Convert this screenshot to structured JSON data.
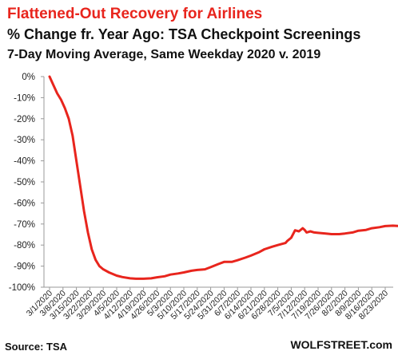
{
  "chart_data": {
    "type": "line",
    "title": "Flattened-Out  Recovery for Airlines",
    "subtitle": "% Change fr. Year Ago: TSA Checkpoint Screenings",
    "subtitle2": "7-Day Moving Average, Same Weekday 2020 v. 2019",
    "xlabel": "",
    "ylabel": "",
    "ylim": [
      -100,
      0
    ],
    "yticks": [
      0,
      -10,
      -20,
      -30,
      -40,
      -50,
      -60,
      -70,
      -80,
      -90,
      -100
    ],
    "ytick_labels": [
      "0%",
      "-10%",
      "-20%",
      "-30%",
      "-40%",
      "-50%",
      "-60%",
      "-70%",
      "-80%",
      "-90%",
      "-100%"
    ],
    "xticks": [
      "3/1/2020",
      "3/8/2020",
      "3/15/2020",
      "3/22/2020",
      "3/29/2020",
      "4/5/2020",
      "4/12/2020",
      "4/19/2020",
      "4/26/2020",
      "5/3/2020",
      "5/10/2020",
      "5/17/2020",
      "5/24/2020",
      "5/31/2020",
      "6/7/2020",
      "6/14/2020",
      "6/21/2020",
      "6/28/2020",
      "7/5/2020",
      "7/12/2020",
      "7/19/2020",
      "7/26/2020",
      "8/2/2020",
      "8/9/2020",
      "8/16/2020",
      "8/23/2020"
    ],
    "grid": false,
    "series": [
      {
        "color": "#e8251d",
        "x": [
          "2020-03-01",
          "2020-03-03",
          "2020-03-05",
          "2020-03-07",
          "2020-03-09",
          "2020-03-11",
          "2020-03-13",
          "2020-03-15",
          "2020-03-17",
          "2020-03-19",
          "2020-03-21",
          "2020-03-23",
          "2020-03-25",
          "2020-03-27",
          "2020-03-29",
          "2020-04-01",
          "2020-04-05",
          "2020-04-08",
          "2020-04-12",
          "2020-04-15",
          "2020-04-19",
          "2020-04-23",
          "2020-04-26",
          "2020-04-30",
          "2020-05-03",
          "2020-05-07",
          "2020-05-10",
          "2020-05-14",
          "2020-05-17",
          "2020-05-21",
          "2020-05-24",
          "2020-05-28",
          "2020-05-31",
          "2020-06-04",
          "2020-06-07",
          "2020-06-11",
          "2020-06-14",
          "2020-06-18",
          "2020-06-21",
          "2020-06-25",
          "2020-06-28",
          "2020-07-02",
          "2020-07-03",
          "2020-07-05",
          "2020-07-07",
          "2020-07-09",
          "2020-07-11",
          "2020-07-12",
          "2020-07-13",
          "2020-07-15",
          "2020-07-17",
          "2020-07-19",
          "2020-07-23",
          "2020-07-26",
          "2020-07-30",
          "2020-08-02",
          "2020-08-06",
          "2020-08-09",
          "2020-08-13",
          "2020-08-16",
          "2020-08-20",
          "2020-08-23",
          "2020-08-27",
          "2020-08-31"
        ],
        "values": [
          0,
          -4,
          -8,
          -11,
          -15,
          -20,
          -28,
          -40,
          -52,
          -64,
          -74,
          -82,
          -87,
          -90,
          -91.5,
          -93,
          -94.5,
          -95.2,
          -95.8,
          -96,
          -96,
          -95.8,
          -95.3,
          -94.8,
          -94,
          -93.5,
          -93,
          -92.2,
          -91.8,
          -91.5,
          -90.5,
          -89,
          -88,
          -88,
          -87.2,
          -86,
          -85,
          -83.5,
          -82,
          -80.8,
          -80,
          -79,
          -78,
          -76.5,
          -73,
          -73.5,
          -72,
          -72.8,
          -74,
          -73.5,
          -74,
          -74.2,
          -74.5,
          -74.8,
          -74.8,
          -74.5,
          -74,
          -73.2,
          -72.8,
          -72,
          -71.5,
          -71,
          -70.8,
          -71
        ]
      }
    ],
    "source": "Source: TSA",
    "brand": "WOLFSTREET.com"
  }
}
